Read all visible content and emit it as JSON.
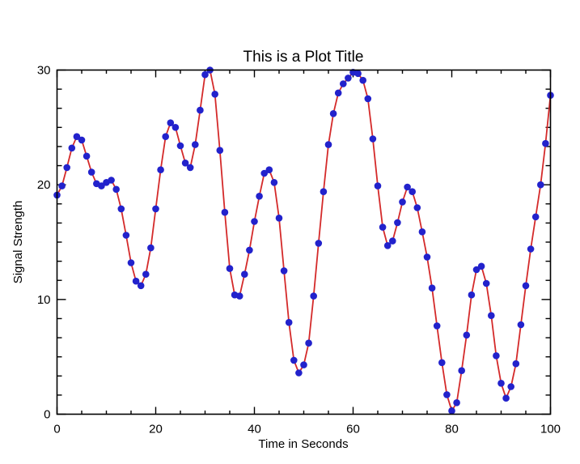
{
  "window": {
    "kind": "plot-figure",
    "background": "#ffffff"
  },
  "chart_data": {
    "type": "line",
    "title": "This is a Plot Title",
    "xlabel": "Time in Seconds",
    "ylabel": "Signal Strength",
    "xlim": [
      0,
      100
    ],
    "ylim": [
      0,
      30
    ],
    "x_ticks": [
      0,
      20,
      40,
      60,
      80,
      100
    ],
    "y_ticks": [
      0,
      10,
      20,
      30
    ],
    "x_minor_divisions": 4,
    "y_minor_divisions": 6,
    "grid": false,
    "legend": null,
    "marker": "circle",
    "line_color": "#d42a2a",
    "marker_color": "#2222cc",
    "axis_color": "#000000",
    "x_start": 0,
    "x_step": 1,
    "y_values": [
      19.1,
      19.9,
      21.5,
      23.2,
      24.2,
      23.9,
      22.5,
      21.1,
      20.1,
      19.9,
      20.2,
      20.4,
      19.6,
      17.9,
      15.6,
      13.2,
      11.6,
      11.2,
      12.2,
      14.5,
      17.9,
      21.3,
      24.2,
      25.4,
      25.0,
      23.4,
      21.9,
      21.5,
      23.5,
      26.5,
      29.6,
      30.0,
      27.9,
      23.0,
      17.6,
      12.7,
      10.4,
      10.3,
      12.2,
      14.3,
      16.8,
      19.0,
      21.0,
      21.3,
      20.2,
      17.1,
      12.5,
      8.0,
      4.7,
      3.6,
      4.3,
      6.2,
      10.3,
      14.9,
      19.4,
      23.5,
      26.2,
      28.0,
      28.8,
      29.3,
      29.8,
      29.7,
      29.1,
      27.5,
      24.0,
      19.9,
      16.3,
      14.7,
      15.1,
      16.7,
      18.5,
      19.8,
      19.4,
      18.0,
      15.9,
      13.7,
      11.0,
      7.7,
      4.5,
      1.7,
      0.3,
      1.0,
      3.8,
      6.9,
      10.4,
      12.6,
      12.9,
      11.4,
      8.6,
      5.1,
      2.7,
      1.4,
      2.4,
      4.4,
      7.8,
      11.2,
      14.4,
      17.2,
      20.0,
      23.6,
      27.8
    ]
  }
}
